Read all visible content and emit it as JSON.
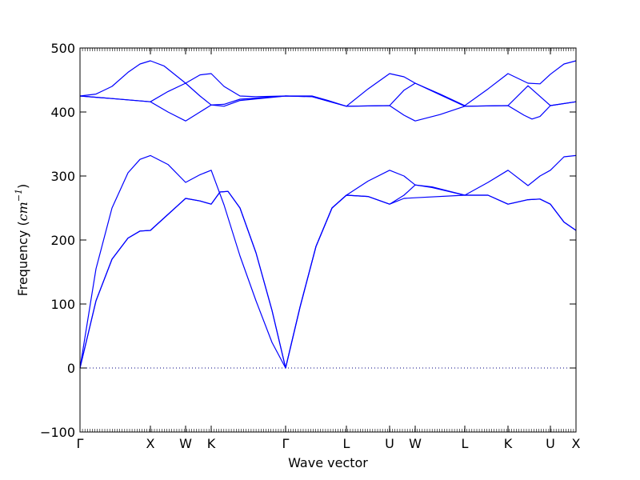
{
  "chart_data": {
    "type": "line",
    "title": "",
    "xlabel": "Wave vector",
    "ylabel_text": "Frequency (",
    "ylabel_math": "cm",
    "ylabel_exp": "−1",
    "ylabel_close": ")",
    "ylim": [
      -100,
      500
    ],
    "yticks": [
      -100,
      0,
      100,
      200,
      300,
      400,
      500
    ],
    "grid": false,
    "legend": "none",
    "line_color": "#0000ff",
    "zero_line_color": "#000080",
    "xlim": [
      0,
      620
    ],
    "xticks": [
      {
        "label": "Γ",
        "x": 0
      },
      {
        "label": "X",
        "x": 88
      },
      {
        "label": "W",
        "x": 132
      },
      {
        "label": "K",
        "x": 164
      },
      {
        "label": "Γ",
        "x": 257
      },
      {
        "label": "L",
        "x": 333
      },
      {
        "label": "U",
        "x": 387
      },
      {
        "label": "W",
        "x": 419
      },
      {
        "label": "L",
        "x": 481
      },
      {
        "label": "K",
        "x": 535
      },
      {
        "label": "U",
        "x": 588
      },
      {
        "label": "X",
        "x": 620
      }
    ],
    "series": [
      {
        "points": [
          [
            0,
            425
          ],
          [
            20,
            428
          ],
          [
            40,
            440
          ],
          [
            60,
            462
          ],
          [
            75,
            475
          ],
          [
            88,
            480
          ],
          [
            105,
            472
          ],
          [
            132,
            445
          ],
          [
            150,
            458
          ],
          [
            164,
            460
          ],
          [
            180,
            440
          ],
          [
            200,
            425
          ],
          [
            220,
            424
          ],
          [
            257,
            425
          ],
          [
            290,
            425
          ],
          [
            310,
            418
          ],
          [
            333,
            409
          ],
          [
            360,
            436
          ],
          [
            387,
            460
          ],
          [
            405,
            455
          ],
          [
            419,
            445
          ],
          [
            450,
            428
          ],
          [
            481,
            410
          ],
          [
            510,
            436
          ],
          [
            535,
            460
          ],
          [
            560,
            445
          ],
          [
            575,
            444
          ],
          [
            588,
            459
          ],
          [
            605,
            475
          ],
          [
            620,
            480
          ]
        ]
      },
      {
        "points": [
          [
            0,
            425
          ],
          [
            40,
            421
          ],
          [
            88,
            416
          ],
          [
            110,
            400
          ],
          [
            132,
            386
          ],
          [
            150,
            400
          ],
          [
            164,
            411
          ],
          [
            180,
            412
          ],
          [
            200,
            420
          ],
          [
            257,
            425
          ],
          [
            290,
            424
          ],
          [
            333,
            409
          ],
          [
            387,
            410
          ],
          [
            405,
            395
          ],
          [
            419,
            386
          ],
          [
            450,
            396
          ],
          [
            481,
            409
          ],
          [
            535,
            410
          ],
          [
            555,
            395
          ],
          [
            565,
            389
          ],
          [
            575,
            393
          ],
          [
            588,
            410
          ],
          [
            620,
            416
          ]
        ]
      },
      {
        "points": [
          [
            0,
            425
          ],
          [
            40,
            421
          ],
          [
            88,
            416
          ],
          [
            110,
            432
          ],
          [
            132,
            445
          ],
          [
            150,
            425
          ],
          [
            164,
            411
          ],
          [
            180,
            409
          ],
          [
            200,
            418
          ],
          [
            257,
            425
          ],
          [
            290,
            424
          ],
          [
            333,
            409
          ],
          [
            387,
            410
          ],
          [
            405,
            434
          ],
          [
            419,
            445
          ],
          [
            450,
            427
          ],
          [
            481,
            409
          ],
          [
            535,
            410
          ],
          [
            560,
            441
          ],
          [
            588,
            410
          ],
          [
            620,
            416
          ]
        ]
      },
      {
        "points": [
          [
            0,
            0
          ],
          [
            20,
            155
          ],
          [
            40,
            250
          ],
          [
            60,
            305
          ],
          [
            75,
            326
          ],
          [
            88,
            332
          ],
          [
            110,
            318
          ],
          [
            132,
            290
          ],
          [
            150,
            302
          ],
          [
            164,
            309
          ],
          [
            180,
            255
          ],
          [
            200,
            175
          ],
          [
            220,
            105
          ],
          [
            240,
            40
          ],
          [
            257,
            0
          ],
          [
            275,
            95
          ],
          [
            295,
            190
          ],
          [
            315,
            250
          ],
          [
            333,
            270
          ],
          [
            360,
            292
          ],
          [
            387,
            309
          ],
          [
            405,
            300
          ],
          [
            419,
            286
          ],
          [
            440,
            282
          ],
          [
            481,
            270
          ],
          [
            510,
            290
          ],
          [
            535,
            309
          ],
          [
            560,
            285
          ],
          [
            575,
            300
          ],
          [
            588,
            309
          ],
          [
            605,
            330
          ],
          [
            620,
            332
          ]
        ]
      },
      {
        "points": [
          [
            0,
            0
          ],
          [
            20,
            105
          ],
          [
            40,
            170
          ],
          [
            60,
            203
          ],
          [
            75,
            214
          ],
          [
            88,
            215
          ],
          [
            110,
            240
          ],
          [
            132,
            265
          ],
          [
            150,
            261
          ],
          [
            164,
            256
          ],
          [
            175,
            275
          ],
          [
            185,
            276
          ],
          [
            200,
            250
          ],
          [
            220,
            180
          ],
          [
            240,
            90
          ],
          [
            257,
            0
          ],
          [
            275,
            95
          ],
          [
            295,
            190
          ],
          [
            315,
            250
          ],
          [
            333,
            270
          ],
          [
            360,
            268
          ],
          [
            387,
            256
          ],
          [
            405,
            270
          ],
          [
            419,
            286
          ],
          [
            440,
            283
          ],
          [
            481,
            270
          ],
          [
            510,
            270
          ],
          [
            535,
            256
          ],
          [
            560,
            263
          ],
          [
            575,
            264
          ],
          [
            588,
            256
          ],
          [
            605,
            228
          ],
          [
            620,
            215
          ]
        ]
      },
      {
        "points": [
          [
            0,
            0
          ],
          [
            20,
            105
          ],
          [
            40,
            170
          ],
          [
            60,
            203
          ],
          [
            75,
            214
          ],
          [
            88,
            215
          ],
          [
            110,
            240
          ],
          [
            132,
            265
          ],
          [
            150,
            261
          ],
          [
            164,
            256
          ],
          [
            175,
            275
          ],
          [
            185,
            276
          ],
          [
            200,
            250
          ],
          [
            220,
            180
          ],
          [
            240,
            90
          ],
          [
            257,
            0
          ],
          [
            275,
            95
          ],
          [
            295,
            190
          ],
          [
            315,
            250
          ],
          [
            333,
            270
          ],
          [
            360,
            268
          ],
          [
            387,
            256
          ],
          [
            405,
            265
          ],
          [
            419,
            266
          ],
          [
            481,
            270
          ],
          [
            510,
            270
          ],
          [
            535,
            256
          ],
          [
            560,
            263
          ],
          [
            575,
            264
          ],
          [
            588,
            256
          ],
          [
            605,
            228
          ],
          [
            620,
            215
          ]
        ]
      }
    ]
  }
}
